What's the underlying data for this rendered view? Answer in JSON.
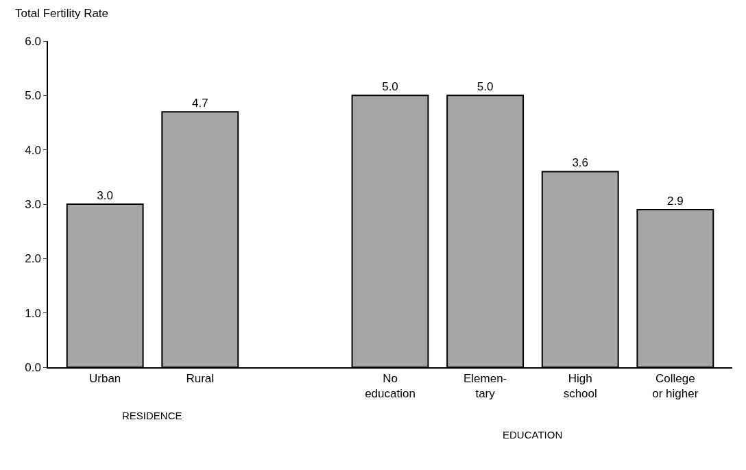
{
  "chart_data": {
    "type": "bar",
    "ylabel": "Total Fertility Rate",
    "categories": [
      "Urban",
      "Rural",
      null,
      "No\neducation",
      "Elemen-\ntary",
      "High\nschool",
      "College\nor higher"
    ],
    "values": [
      3.0,
      4.7,
      null,
      5.0,
      5.0,
      3.6,
      2.9
    ],
    "value_labels": [
      "3.0",
      "4.7",
      null,
      "5.0",
      "5.0",
      "3.6",
      "2.9"
    ],
    "color": "#a6a6a6",
    "ylim": [
      0,
      6
    ],
    "yticks": [
      {
        "value": 0,
        "label": "0.0"
      },
      {
        "value": 1,
        "label": "1.0"
      },
      {
        "value": 2,
        "label": "2.0"
      },
      {
        "value": 3,
        "label": "3.0"
      },
      {
        "value": 4,
        "label": "4.0"
      },
      {
        "value": 5,
        "label": "5.0"
      },
      {
        "value": 6,
        "label": "6.0"
      }
    ],
    "annotations": [
      "RESIDENCE",
      "EDUCATION"
    ]
  }
}
